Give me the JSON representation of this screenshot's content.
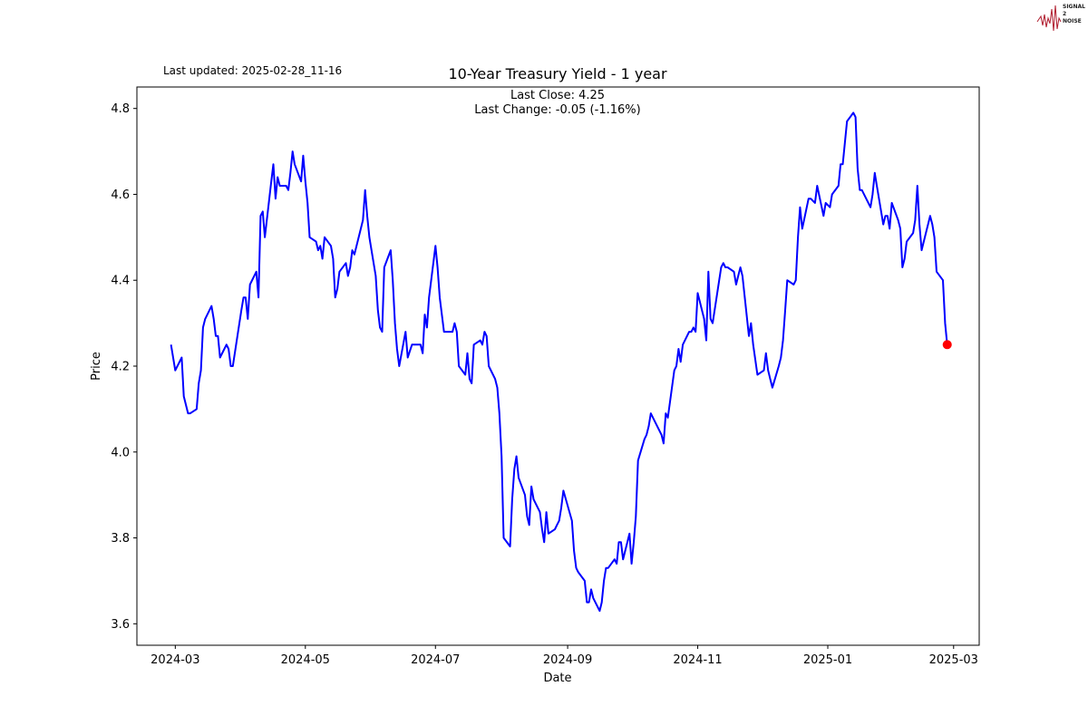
{
  "header": {
    "last_updated": "Last updated: 2025-02-28_11-16"
  },
  "logo": {
    "text": "SIGNAL 2 NOISE",
    "lines": [
      "SIGNAL",
      "2",
      "NOISE"
    ],
    "color": "#b01c2e"
  },
  "chart_data": {
    "type": "line",
    "title": "10-Year Treasury Yield - 1 year",
    "xlabel": "Date",
    "ylabel": "Price",
    "annotations": [
      "Last Close: 4.25",
      "Last Change: -0.05 (-1.16%)"
    ],
    "ylim": [
      3.55,
      4.85
    ],
    "xlim": [
      "2024-02-12",
      "2025-03-13"
    ],
    "yticks": [
      3.6,
      3.8,
      4.0,
      4.2,
      4.4,
      4.6,
      4.8
    ],
    "ytick_labels": [
      "3.6",
      "3.8",
      "4.0",
      "4.2",
      "4.4",
      "4.6",
      "4.8"
    ],
    "xticks": [
      "2024-03-01",
      "2024-05-01",
      "2024-07-01",
      "2024-09-01",
      "2024-11-01",
      "2025-01-01",
      "2025-03-01"
    ],
    "xtick_labels": [
      "2024-03",
      "2024-05",
      "2024-07",
      "2024-09",
      "2024-11",
      "2025-01",
      "2025-03"
    ],
    "grid": false,
    "line_color": "#0000ff",
    "marker_color": "#ff0000",
    "series": [
      {
        "x": [
          "2024-02-28",
          "2024-03-01",
          "2024-03-04",
          "2024-03-05",
          "2024-03-07",
          "2024-03-08",
          "2024-03-11",
          "2024-03-12",
          "2024-03-13",
          "2024-03-14",
          "2024-03-15",
          "2024-03-18",
          "2024-03-19",
          "2024-03-20",
          "2024-03-21",
          "2024-03-22",
          "2024-03-25",
          "2024-03-26",
          "2024-03-27",
          "2024-03-28",
          "2024-04-01",
          "2024-04-02",
          "2024-04-03",
          "2024-04-04",
          "2024-04-05",
          "2024-04-08",
          "2024-04-09",
          "2024-04-10",
          "2024-04-11",
          "2024-04-12",
          "2024-04-15",
          "2024-04-16",
          "2024-04-17",
          "2024-04-18",
          "2024-04-19",
          "2024-04-22",
          "2024-04-23",
          "2024-04-24",
          "2024-04-25",
          "2024-04-26",
          "2024-04-29",
          "2024-04-30",
          "2024-05-01",
          "2024-05-02",
          "2024-05-03",
          "2024-05-06",
          "2024-05-07",
          "2024-05-08",
          "2024-05-09",
          "2024-05-10",
          "2024-05-13",
          "2024-05-14",
          "2024-05-15",
          "2024-05-16",
          "2024-05-17",
          "2024-05-20",
          "2024-05-21",
          "2024-05-22",
          "2024-05-23",
          "2024-05-24",
          "2024-05-28",
          "2024-05-29",
          "2024-05-30",
          "2024-05-31",
          "2024-06-03",
          "2024-06-04",
          "2024-06-05",
          "2024-06-06",
          "2024-06-07",
          "2024-06-10",
          "2024-06-11",
          "2024-06-12",
          "2024-06-13",
          "2024-06-14",
          "2024-06-17",
          "2024-06-18",
          "2024-06-20",
          "2024-06-21",
          "2024-06-24",
          "2024-06-25",
          "2024-06-26",
          "2024-06-27",
          "2024-06-28",
          "2024-07-01",
          "2024-07-02",
          "2024-07-03",
          "2024-07-05",
          "2024-07-08",
          "2024-07-09",
          "2024-07-10",
          "2024-07-11",
          "2024-07-12",
          "2024-07-15",
          "2024-07-16",
          "2024-07-17",
          "2024-07-18",
          "2024-07-19",
          "2024-07-22",
          "2024-07-23",
          "2024-07-24",
          "2024-07-25",
          "2024-07-26",
          "2024-07-29",
          "2024-07-30",
          "2024-07-31",
          "2024-08-01",
          "2024-08-02",
          "2024-08-05",
          "2024-08-06",
          "2024-08-07",
          "2024-08-08",
          "2024-08-09",
          "2024-08-12",
          "2024-08-13",
          "2024-08-14",
          "2024-08-15",
          "2024-08-16",
          "2024-08-19",
          "2024-08-20",
          "2024-08-21",
          "2024-08-22",
          "2024-08-23",
          "2024-08-26",
          "2024-08-27",
          "2024-08-28",
          "2024-08-29",
          "2024-08-30",
          "2024-09-03",
          "2024-09-04",
          "2024-09-05",
          "2024-09-06",
          "2024-09-09",
          "2024-09-10",
          "2024-09-11",
          "2024-09-12",
          "2024-09-13",
          "2024-09-16",
          "2024-09-17",
          "2024-09-18",
          "2024-09-19",
          "2024-09-20",
          "2024-09-23",
          "2024-09-24",
          "2024-09-25",
          "2024-09-26",
          "2024-09-27",
          "2024-09-30",
          "2024-10-01",
          "2024-10-02",
          "2024-10-03",
          "2024-10-04",
          "2024-10-07",
          "2024-10-08",
          "2024-10-09",
          "2024-10-10",
          "2024-10-11",
          "2024-10-15",
          "2024-10-16",
          "2024-10-17",
          "2024-10-18",
          "2024-10-21",
          "2024-10-22",
          "2024-10-23",
          "2024-10-24",
          "2024-10-25",
          "2024-10-28",
          "2024-10-29",
          "2024-10-30",
          "2024-10-31",
          "2024-11-01",
          "2024-11-04",
          "2024-11-05",
          "2024-11-06",
          "2024-11-07",
          "2024-11-08",
          "2024-11-12",
          "2024-11-13",
          "2024-11-14",
          "2024-11-15",
          "2024-11-18",
          "2024-11-19",
          "2024-11-20",
          "2024-11-21",
          "2024-11-22",
          "2024-11-25",
          "2024-11-26",
          "2024-11-27",
          "2024-11-29",
          "2024-12-02",
          "2024-12-03",
          "2024-12-04",
          "2024-12-05",
          "2024-12-06",
          "2024-12-09",
          "2024-12-10",
          "2024-12-11",
          "2024-12-12",
          "2024-12-13",
          "2024-12-16",
          "2024-12-17",
          "2024-12-18",
          "2024-12-19",
          "2024-12-20",
          "2024-12-23",
          "2024-12-24",
          "2024-12-26",
          "2024-12-27",
          "2024-12-30",
          "2024-12-31",
          "2025-01-02",
          "2025-01-03",
          "2025-01-06",
          "2025-01-07",
          "2025-01-08",
          "2025-01-10",
          "2025-01-13",
          "2025-01-14",
          "2025-01-15",
          "2025-01-16",
          "2025-01-17",
          "2025-01-21",
          "2025-01-22",
          "2025-01-23",
          "2025-01-24",
          "2025-01-27",
          "2025-01-28",
          "2025-01-29",
          "2025-01-30",
          "2025-01-31",
          "2025-02-03",
          "2025-02-04",
          "2025-02-05",
          "2025-02-06",
          "2025-02-07",
          "2025-02-10",
          "2025-02-11",
          "2025-02-12",
          "2025-02-13",
          "2025-02-14",
          "2025-02-18",
          "2025-02-19",
          "2025-02-20",
          "2025-02-21",
          "2025-02-24",
          "2025-02-25",
          "2025-02-26"
        ],
        "y": [
          4.25,
          4.19,
          4.22,
          4.13,
          4.09,
          4.09,
          4.1,
          4.16,
          4.19,
          4.29,
          4.31,
          4.34,
          4.31,
          4.27,
          4.27,
          4.22,
          4.25,
          4.24,
          4.2,
          4.2,
          4.33,
          4.36,
          4.36,
          4.31,
          4.39,
          4.42,
          4.36,
          4.55,
          4.56,
          4.5,
          4.63,
          4.67,
          4.59,
          4.64,
          4.62,
          4.62,
          4.61,
          4.65,
          4.7,
          4.67,
          4.63,
          4.69,
          4.63,
          4.58,
          4.5,
          4.49,
          4.47,
          4.48,
          4.45,
          4.5,
          4.48,
          4.45,
          4.36,
          4.38,
          4.42,
          4.44,
          4.41,
          4.43,
          4.47,
          4.46,
          4.54,
          4.61,
          4.55,
          4.5,
          4.41,
          4.33,
          4.29,
          4.28,
          4.43,
          4.47,
          4.4,
          4.3,
          4.24,
          4.2,
          4.28,
          4.22,
          4.25,
          4.25,
          4.25,
          4.23,
          4.32,
          4.29,
          4.36,
          4.48,
          4.43,
          4.36,
          4.28,
          4.28,
          4.28,
          4.3,
          4.28,
          4.2,
          4.18,
          4.23,
          4.17,
          4.16,
          4.25,
          4.26,
          4.25,
          4.28,
          4.27,
          4.2,
          4.17,
          4.15,
          4.09,
          3.99,
          3.8,
          3.78,
          3.89,
          3.96,
          3.99,
          3.94,
          3.9,
          3.85,
          3.83,
          3.92,
          3.89,
          3.86,
          3.82,
          3.79,
          3.86,
          3.81,
          3.82,
          3.83,
          3.84,
          3.87,
          3.91,
          3.84,
          3.77,
          3.73,
          3.72,
          3.7,
          3.65,
          3.65,
          3.68,
          3.66,
          3.63,
          3.65,
          3.7,
          3.73,
          3.73,
          3.75,
          3.74,
          3.79,
          3.79,
          3.75,
          3.81,
          3.74,
          3.79,
          3.85,
          3.98,
          4.03,
          4.04,
          4.06,
          4.09,
          4.08,
          4.04,
          4.02,
          4.09,
          4.08,
          4.19,
          4.2,
          4.24,
          4.21,
          4.25,
          4.28,
          4.28,
          4.29,
          4.28,
          4.37,
          4.31,
          4.26,
          4.42,
          4.31,
          4.3,
          4.43,
          4.44,
          4.43,
          4.43,
          4.42,
          4.39,
          4.41,
          4.43,
          4.41,
          4.27,
          4.3,
          4.25,
          4.18,
          4.19,
          4.23,
          4.19,
          4.17,
          4.15,
          4.2,
          4.22,
          4.26,
          4.33,
          4.4,
          4.39,
          4.4,
          4.5,
          4.57,
          4.52,
          4.59,
          4.59,
          4.58,
          4.62,
          4.55,
          4.58,
          4.57,
          4.6,
          4.62,
          4.67,
          4.67,
          4.77,
          4.79,
          4.78,
          4.66,
          4.61,
          4.61,
          4.57,
          4.6,
          4.65,
          4.62,
          4.53,
          4.55,
          4.55,
          4.52,
          4.58,
          4.54,
          4.52,
          4.43,
          4.45,
          4.49,
          4.51,
          4.54,
          4.62,
          4.53,
          4.47,
          4.55,
          4.53,
          4.5,
          4.42,
          4.4,
          4.3,
          4.25
        ]
      }
    ],
    "last_point": {
      "x": "2025-02-26",
      "y": 4.25
    }
  }
}
